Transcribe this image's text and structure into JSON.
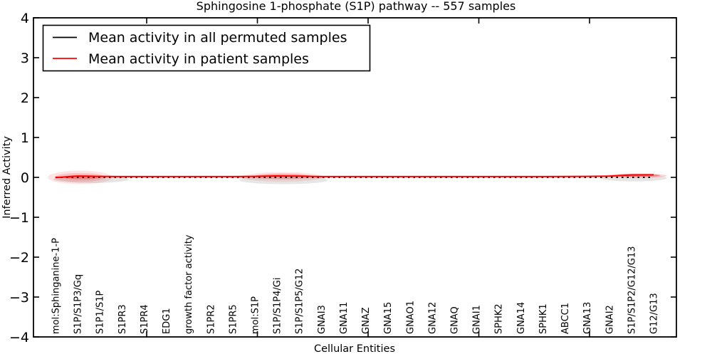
{
  "title": "Sphingosine 1-phosphate (S1P) pathway -- 557 samples",
  "xlabel": "Cellular Entities",
  "ylabel": "Inferred Activity",
  "legend": {
    "items": [
      {
        "label": "Mean activity in all permuted samples",
        "color": "#000000"
      },
      {
        "label": "Mean activity in patient samples",
        "color": "#ff0000"
      }
    ]
  },
  "yticks": [
    "4",
    "3",
    "2",
    "1",
    "0",
    "−1",
    "−2",
    "−3",
    "−4"
  ],
  "ytick_values": [
    4,
    3,
    2,
    1,
    0,
    -1,
    -2,
    -3,
    -4
  ],
  "colors": {
    "permuted_line": "#000000",
    "patient_line": "#ff0000",
    "band_red": "#ff0000",
    "band_gray": "#888888",
    "frame": "#000000",
    "background": "#ffffff"
  },
  "chart_data": {
    "type": "line",
    "title": "Sphingosine 1-phosphate (S1P) pathway -- 557 samples",
    "xlabel": "Cellular Entities",
    "ylabel": "Inferred Activity",
    "ylim": [
      -4,
      4
    ],
    "grid": false,
    "legend_position": "upper left",
    "categories": [
      "mol:Sphinganine-1-P",
      "S1P/S1P3/Gq",
      "S1P1/S1P",
      "S1PR3",
      "S1PR4",
      "EDG1",
      "growth factor activity",
      "S1PR2",
      "S1PR5",
      "mol:S1P",
      "S1P/S1P4/Gi",
      "S1P/S1P5/G12",
      "GNAI3",
      "GNA11",
      "GNAZ",
      "GNA15",
      "GNAO1",
      "GNA12",
      "GNAQ",
      "GNAI1",
      "SPHK2",
      "GNA14",
      "SPHK1",
      "ABCC1",
      "GNA13",
      "GNAI2",
      "S1P/S1P2/G12/G13",
      "G12/G13"
    ],
    "series": [
      {
        "name": "Mean activity in all permuted samples",
        "color": "#000000",
        "style": "dotted",
        "values": [
          0,
          0,
          0,
          0,
          0,
          0,
          0,
          0,
          0,
          0,
          0,
          0,
          0,
          0,
          0,
          0,
          0,
          0,
          0,
          0,
          0,
          0,
          0,
          0,
          0,
          0,
          0,
          0
        ]
      },
      {
        "name": "Mean activity in patient samples",
        "color": "#ff0000",
        "style": "solid",
        "values": [
          -0.005,
          0.03,
          0.025,
          0.02,
          0.02,
          0.02,
          0.02,
          0.02,
          0.02,
          0.025,
          0.035,
          0.03,
          0.02,
          0.02,
          0.02,
          0.02,
          0.02,
          0.02,
          0.02,
          0.02,
          0.02,
          0.02,
          0.02,
          0.022,
          0.025,
          0.03,
          0.06,
          0.065
        ]
      }
    ],
    "distribution_bands": [
      {
        "x": 1.1,
        "y": 0.0,
        "rx": 1.45,
        "ry": 0.17,
        "color": "#ff0000",
        "opacity": 0.1
      },
      {
        "x": 1.1,
        "y": 0.0,
        "rx": 1.15,
        "ry": 0.11,
        "color": "#ff0000",
        "opacity": 0.16
      },
      {
        "x": 1.2,
        "y": 0.005,
        "rx": 0.85,
        "ry": 0.055,
        "color": "#ff0000",
        "opacity": 0.3
      },
      {
        "x": 1.6,
        "y": -0.05,
        "rx": 1.7,
        "ry": 0.09,
        "color": "#888888",
        "opacity": 0.22
      },
      {
        "x": 10.25,
        "y": 0.01,
        "rx": 1.85,
        "ry": 0.12,
        "color": "#ff0000",
        "opacity": 0.1
      },
      {
        "x": 10.25,
        "y": 0.025,
        "rx": 1.3,
        "ry": 0.07,
        "color": "#ff0000",
        "opacity": 0.24
      },
      {
        "x": 10.3,
        "y": -0.07,
        "rx": 2.0,
        "ry": 0.1,
        "color": "#888888",
        "opacity": 0.2
      },
      {
        "x": 10.0,
        "y": 0.0,
        "rx": 2.3,
        "ry": 0.05,
        "color": "#999999",
        "opacity": 0.18
      },
      {
        "x": 26.2,
        "y": 0.04,
        "rx": 1.4,
        "ry": 0.055,
        "color": "#ff0000",
        "opacity": 0.18
      },
      {
        "x": 26.3,
        "y": 0.05,
        "rx": 1.0,
        "ry": 0.035,
        "color": "#ff0000",
        "opacity": 0.38
      },
      {
        "x": 26.1,
        "y": -0.02,
        "rx": 1.5,
        "ry": 0.08,
        "color": "#888888",
        "opacity": 0.22
      }
    ]
  }
}
